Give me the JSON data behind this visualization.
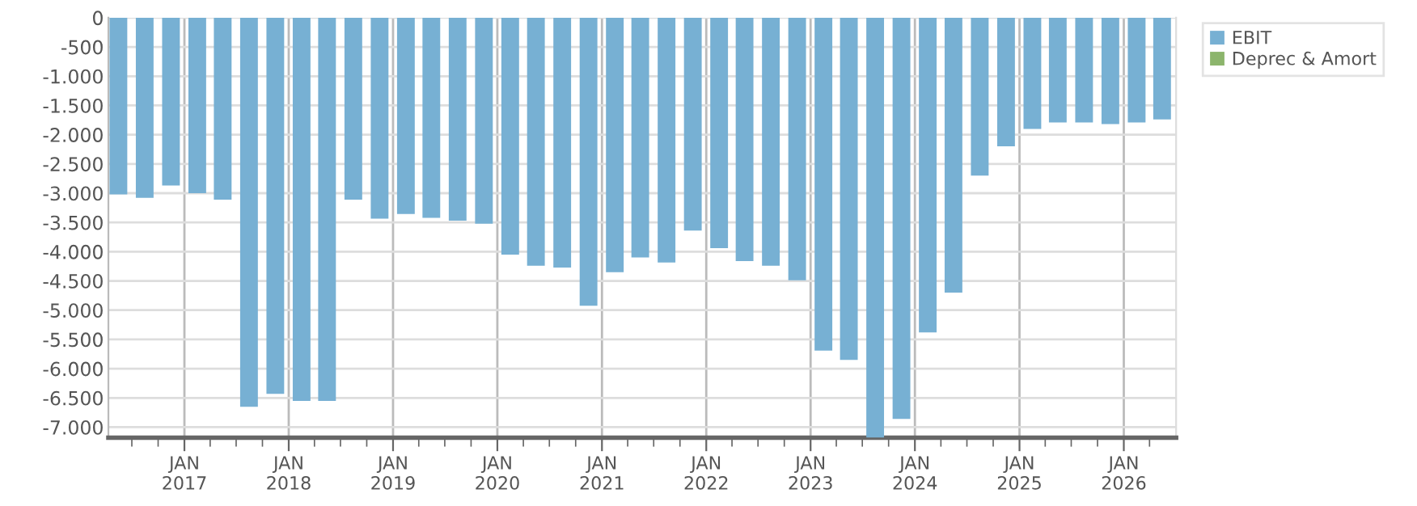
{
  "chart_data": {
    "type": "bar",
    "x": [
      "2016-05-15",
      "2016-08-15",
      "2016-11-15",
      "2017-02-15",
      "2017-05-15",
      "2017-08-15",
      "2017-11-15",
      "2018-02-15",
      "2018-05-15",
      "2018-08-15",
      "2018-11-15",
      "2019-02-15",
      "2019-05-15",
      "2019-08-15",
      "2019-11-15",
      "2020-02-15",
      "2020-05-15",
      "2020-08-15",
      "2020-11-15",
      "2021-02-15",
      "2021-05-15",
      "2021-08-15",
      "2021-11-15",
      "2022-02-15",
      "2022-05-15",
      "2022-08-15",
      "2022-11-15",
      "2023-02-15",
      "2023-05-15",
      "2023-08-15",
      "2023-11-15",
      "2024-02-15",
      "2024-05-15",
      "2024-08-15",
      "2024-11-15",
      "2025-02-15",
      "2025-05-15",
      "2025-08-15",
      "2025-11-15",
      "2026-02-15",
      "2026-05-15"
    ],
    "series": [
      {
        "name": "EBIT",
        "color": "#77b0d3",
        "values": [
          -3020,
          -3080,
          -2870,
          -3000,
          -3110,
          -6650,
          -6430,
          -6550,
          -6550,
          -3110,
          -3435,
          -3355,
          -3420,
          -3470,
          -3520,
          -4050,
          -4240,
          -4270,
          -4925,
          -4350,
          -4100,
          -4185,
          -3640,
          -3940,
          -4160,
          -4240,
          -4490,
          -5690,
          -5850,
          -7180,
          -6860,
          -5380,
          -4700,
          -2700,
          -2200,
          -1900,
          -1790,
          -1790,
          -1820,
          -1790,
          -1740
        ]
      },
      {
        "name": "Deprec & Amort",
        "color": "#8cb56c",
        "values": [
          null,
          null,
          null,
          null,
          null,
          null,
          null,
          null,
          null,
          null,
          null,
          null,
          null,
          null,
          null,
          null,
          null,
          null,
          null,
          null,
          null,
          null,
          null,
          null,
          null,
          null,
          null,
          null,
          null,
          null,
          null,
          null,
          null,
          null,
          null,
          null,
          null,
          null,
          null,
          null,
          null
        ]
      }
    ],
    "xlim": [
      "2016-04-10",
      "2026-07-03"
    ],
    "xticks": [
      {
        "value": "2016-07-01",
        "label": null
      },
      {
        "value": "2016-10-01",
        "label": null
      },
      {
        "value": "2017-01-01",
        "label": "JAN\n2017"
      },
      {
        "value": "2017-04-01",
        "label": null
      },
      {
        "value": "2017-07-01",
        "label": null
      },
      {
        "value": "2017-10-01",
        "label": null
      },
      {
        "value": "2018-01-01",
        "label": "JAN\n2018"
      },
      {
        "value": "2018-04-01",
        "label": null
      },
      {
        "value": "2018-07-01",
        "label": null
      },
      {
        "value": "2018-10-01",
        "label": null
      },
      {
        "value": "2019-01-01",
        "label": "JAN\n2019"
      },
      {
        "value": "2019-04-01",
        "label": null
      },
      {
        "value": "2019-07-01",
        "label": null
      },
      {
        "value": "2019-10-01",
        "label": null
      },
      {
        "value": "2020-01-01",
        "label": "JAN\n2020"
      },
      {
        "value": "2020-04-01",
        "label": null
      },
      {
        "value": "2020-07-01",
        "label": null
      },
      {
        "value": "2020-10-01",
        "label": null
      },
      {
        "value": "2021-01-01",
        "label": "JAN\n2021"
      },
      {
        "value": "2021-04-01",
        "label": null
      },
      {
        "value": "2021-07-01",
        "label": null
      },
      {
        "value": "2021-10-01",
        "label": null
      },
      {
        "value": "2022-01-01",
        "label": "JAN\n2022"
      },
      {
        "value": "2022-04-01",
        "label": null
      },
      {
        "value": "2022-07-01",
        "label": null
      },
      {
        "value": "2022-10-01",
        "label": null
      },
      {
        "value": "2023-01-01",
        "label": "JAN\n2023"
      },
      {
        "value": "2023-04-01",
        "label": null
      },
      {
        "value": "2023-07-01",
        "label": null
      },
      {
        "value": "2023-10-01",
        "label": null
      },
      {
        "value": "2024-01-01",
        "label": "JAN\n2024"
      },
      {
        "value": "2024-04-01",
        "label": null
      },
      {
        "value": "2024-07-01",
        "label": null
      },
      {
        "value": "2024-10-01",
        "label": null
      },
      {
        "value": "2025-01-01",
        "label": "JAN\n2025"
      },
      {
        "value": "2025-04-01",
        "label": null
      },
      {
        "value": "2025-07-01",
        "label": null
      },
      {
        "value": "2025-10-01",
        "label": null
      },
      {
        "value": "2026-01-01",
        "label": "JAN\n2026"
      },
      {
        "value": "2026-04-01",
        "label": null
      }
    ],
    "ylim": [
      -7180,
      0
    ],
    "yticks": [
      {
        "value": 0,
        "label": "0"
      },
      {
        "value": -500,
        "label": "-500"
      },
      {
        "value": -1000,
        "label": "-1.000"
      },
      {
        "value": -1500,
        "label": "-1.500"
      },
      {
        "value": -2000,
        "label": "-2.000"
      },
      {
        "value": -2500,
        "label": "-2.500"
      },
      {
        "value": -3000,
        "label": "-3.000"
      },
      {
        "value": -3500,
        "label": "-3.500"
      },
      {
        "value": -4000,
        "label": "-4.000"
      },
      {
        "value": -4500,
        "label": "-4.500"
      },
      {
        "value": -5000,
        "label": "-5.000"
      },
      {
        "value": -5500,
        "label": "-5.500"
      },
      {
        "value": -6000,
        "label": "-6.000"
      },
      {
        "value": -6500,
        "label": "-6.500"
      },
      {
        "value": -7000,
        "label": "-7.000"
      }
    ],
    "grid": true,
    "legend": "top right"
  }
}
